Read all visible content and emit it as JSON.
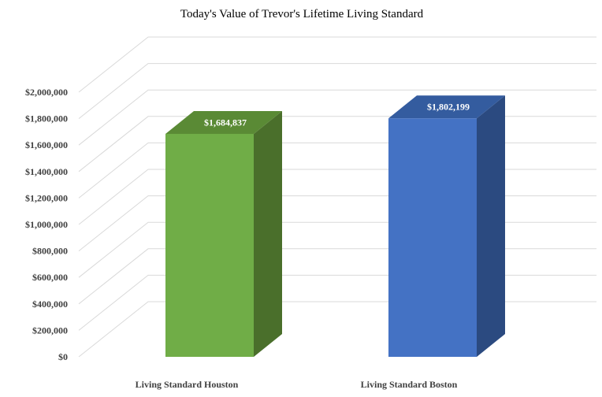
{
  "chart_data": {
    "type": "bar",
    "title": "Today's Value of Trevor's Lifetime Living Standard",
    "xlabel": "",
    "ylabel": "",
    "categories": [
      "Living Standard Houston",
      "Living Standard Boston"
    ],
    "values": [
      1684837,
      1802199
    ],
    "value_labels": [
      "$1,684,837",
      "$1,802,199"
    ],
    "ylim": [
      0,
      2000000
    ],
    "yticks": [
      0,
      200000,
      400000,
      600000,
      800000,
      1000000,
      1200000,
      1400000,
      1600000,
      1800000,
      2000000
    ],
    "ytick_labels": [
      "$0",
      "$200,000",
      "$400,000",
      "$600,000",
      "$800,000",
      "$1,000,000",
      "$1,200,000",
      "$1,400,000",
      "$1,600,000",
      "$1,800,000",
      "$2,000,000"
    ],
    "grid": true,
    "style": "3d-column",
    "colors": [
      {
        "front": "#70ad47",
        "side": "#4a6f2b",
        "top": "#5a8a35"
      },
      {
        "front": "#4472c4",
        "side": "#2b4a80",
        "top": "#345c9f"
      }
    ],
    "grid_color": "#d9d9d9"
  }
}
